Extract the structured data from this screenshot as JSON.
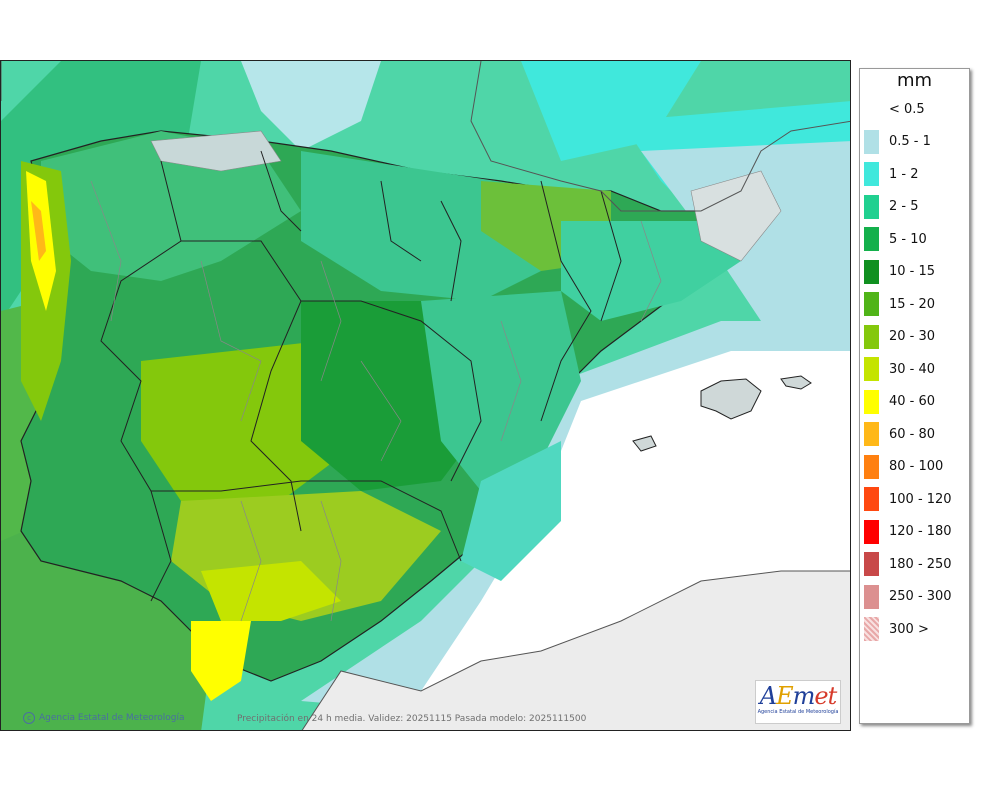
{
  "legend": {
    "unit": "mm",
    "items": [
      {
        "label": "< 0.5",
        "color": "#ffffff"
      },
      {
        "label": "0.5 - 1",
        "color": "#b0e0e6"
      },
      {
        "label": "1 - 2",
        "color": "#40e8dc"
      },
      {
        "label": "2 - 5",
        "color": "#20d090"
      },
      {
        "label": "5 - 10",
        "color": "#14b04c"
      },
      {
        "label": "10 - 15",
        "color": "#109020"
      },
      {
        "label": "15 - 20",
        "color": "#50b418"
      },
      {
        "label": "20 - 30",
        "color": "#84c80c"
      },
      {
        "label": "30 - 40",
        "color": "#c4e400"
      },
      {
        "label": "40 - 60",
        "color": "#ffff00"
      },
      {
        "label": "60 - 80",
        "color": "#ffb818"
      },
      {
        "label": "80 - 100",
        "color": "#ff8010"
      },
      {
        "label": "100 - 120",
        "color": "#ff4810"
      },
      {
        "label": "120 - 180",
        "color": "#ff0000"
      },
      {
        "label": "180 - 250",
        "color": "#c84848"
      },
      {
        "label": "250 - 300",
        "color": "#dc9090"
      },
      {
        "label": "300 >",
        "color": "#f0c8c8"
      }
    ]
  },
  "footer": {
    "credit": "Agencia Estatal de Meteorología",
    "validity": "Precipitación en 24 h media. Validez: 20251115 Pasada modelo: 2025111500"
  },
  "logo": {
    "wordmark_a": "A",
    "wordmark_e": "E",
    "wordmark_m": "m",
    "wordmark_et": "et",
    "subtitle": "Agencia Estatal de Meteorología"
  }
}
